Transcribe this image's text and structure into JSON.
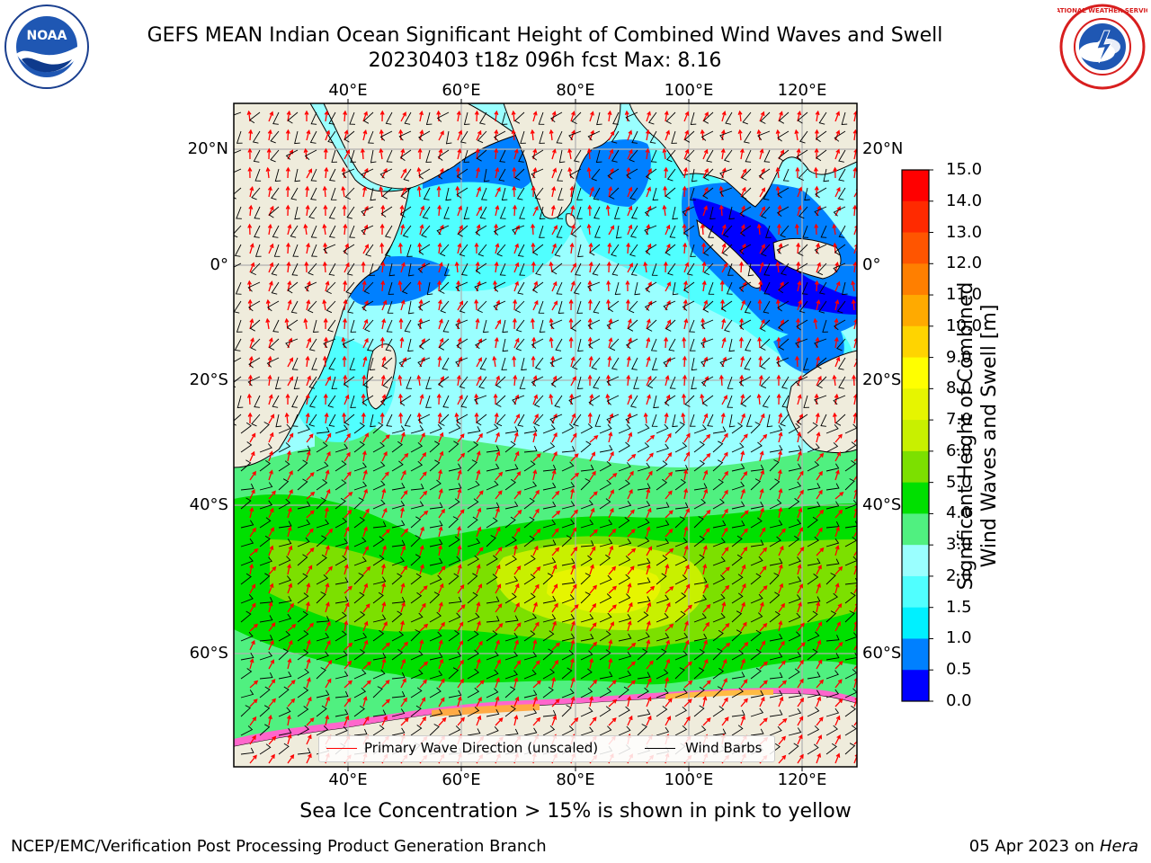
{
  "title": {
    "line1": "GEFS MEAN Indian Ocean Significant Height of Combined Wind Waves and Swell",
    "line2": "20230403 t18z 096h fcst   Max: 8.16"
  },
  "logos": {
    "left": "noaa-logo",
    "right": "nws-logo",
    "left_text": "NOAA",
    "right_text": "NATIONAL WEATHER SERVICE"
  },
  "map": {
    "lon_ticks": [
      "40°E",
      "60°E",
      "80°E",
      "100°E",
      "120°E"
    ],
    "lat_ticks": [
      "20°N",
      "0°",
      "20°S",
      "40°S",
      "60°S"
    ],
    "land_color": "#efecdc",
    "grid": true
  },
  "legend": {
    "wave_label": "Primary Wave Direction (unscaled)",
    "wave_color": "#ff0000",
    "barb_label": "Wind Barbs",
    "barb_color": "#000000"
  },
  "colorbar": {
    "label_line1": "Significant Height of Combined",
    "label_line2": "Wind Waves and Swell [m]",
    "ticks": [
      "15.0",
      "14.0",
      "13.0",
      "12.0",
      "11.0",
      "10.0",
      "9.0",
      "8.0",
      "7.0",
      "6.0",
      "5.0",
      "4.0",
      "3.0",
      "2.0",
      "1.5",
      "1.0",
      "0.5",
      "0.0"
    ],
    "colors": [
      "#ff0000",
      "#ff2a00",
      "#ff5500",
      "#ff7f00",
      "#ffaa00",
      "#ffd400",
      "#ffff00",
      "#e6f500",
      "#c8f000",
      "#7ce000",
      "#00e000",
      "#50f080",
      "#9affff",
      "#50ffff",
      "#00f0ff",
      "#0080ff",
      "#0000ff"
    ]
  },
  "caption": "Sea Ice Concentration > 15% is shown in pink to yellow",
  "footer": {
    "left": "NCEP/EMC/Verification Post Processing Product Generation Branch",
    "date": "05 Apr 2023 on ",
    "host": "Hera"
  }
}
